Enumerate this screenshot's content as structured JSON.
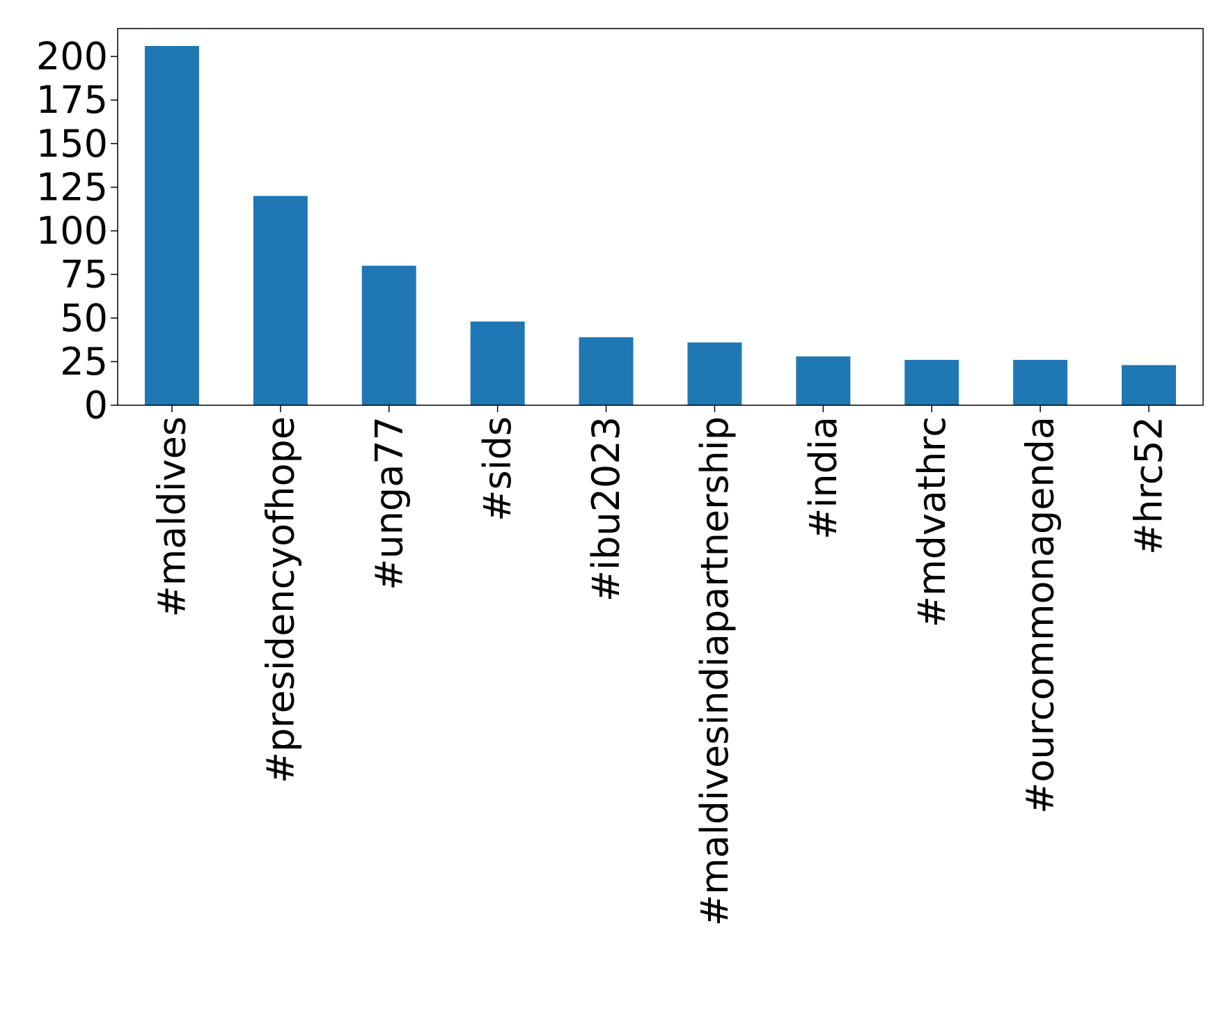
{
  "chart_data": {
    "type": "bar",
    "categories": [
      "#maldives",
      "#presidencyofhope",
      "#unga77",
      "#sids",
      "#ibu2023",
      "#maldivesindiapartnership",
      "#india",
      "#mdvathrc",
      "#ourcommonagenda",
      "#hrc52"
    ],
    "values": [
      206,
      120,
      80,
      48,
      39,
      36,
      28,
      26,
      26,
      23
    ],
    "color": "#1f77b4",
    "ylim": [
      0,
      216
    ],
    "yticks": [
      0,
      25,
      50,
      75,
      100,
      125,
      150,
      175,
      200
    ],
    "grid": false
  }
}
